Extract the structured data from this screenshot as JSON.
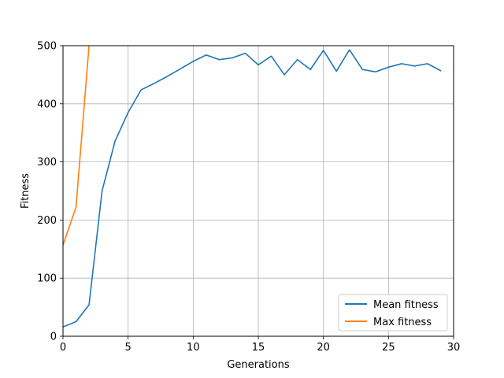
{
  "chart_data": {
    "type": "line",
    "xlabel": "Generations",
    "ylabel": "Fitness",
    "xlim": [
      0,
      30
    ],
    "ylim": [
      0,
      500
    ],
    "xticks": [
      0,
      5,
      10,
      15,
      20,
      25,
      30
    ],
    "yticks": [
      0,
      100,
      200,
      300,
      400,
      500
    ],
    "grid": true,
    "legend_position": "lower-right",
    "series": [
      {
        "name": "Mean fitness",
        "color": "#1f77b4",
        "x": [
          0,
          1,
          2,
          3,
          4,
          5,
          6,
          7,
          8,
          9,
          10,
          11,
          12,
          13,
          14,
          15,
          16,
          17,
          18,
          19,
          20,
          21,
          22,
          23,
          24,
          25,
          26,
          27,
          28,
          29
        ],
        "values": [
          16,
          25,
          54,
          250,
          336,
          385,
          424,
          435,
          447,
          460,
          473,
          484,
          476,
          479,
          487,
          467,
          482,
          450,
          476,
          459,
          492,
          456,
          493,
          459,
          455,
          463,
          469,
          465,
          469,
          457
        ]
      },
      {
        "name": "Max fitness",
        "color": "#ff7f0e",
        "x": [
          0,
          1,
          2
        ],
        "values": [
          157,
          222,
          500
        ]
      }
    ]
  }
}
